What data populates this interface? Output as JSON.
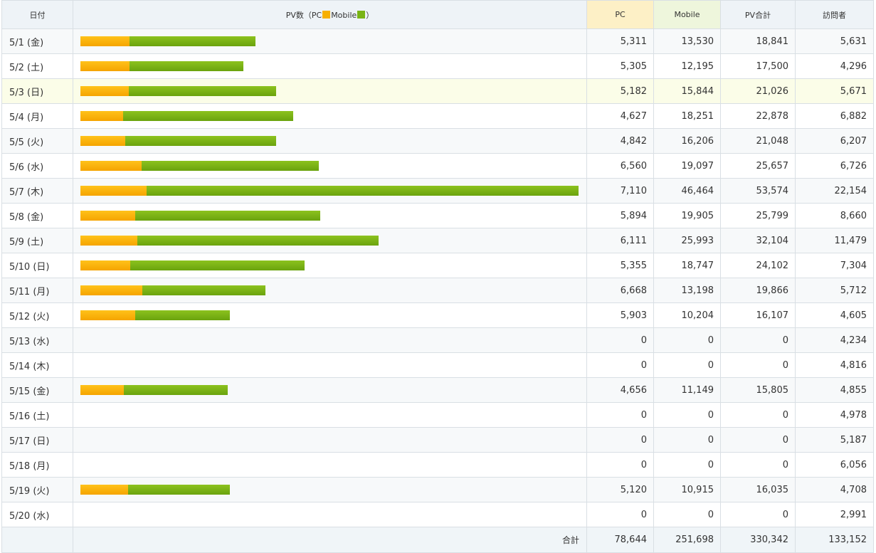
{
  "header": {
    "date": "日付",
    "pv_prefix": "PV数（PC",
    "pv_mobile": "Mobile",
    "pv_suffix": "）",
    "pc": "PC",
    "mobile": "Mobile",
    "total": "PV合計",
    "visitors": "訪問者"
  },
  "colors": {
    "pc": "#f7b000",
    "mobile": "#79b415",
    "highlight_row": "#fbfde8"
  },
  "rows": [
    {
      "date": "5/1 (金)",
      "pc": "5,311",
      "mobile": "13,530",
      "total": "18,841",
      "visitors": "5,631",
      "pc_v": 5311,
      "mob_v": 13530
    },
    {
      "date": "5/2 (土)",
      "pc": "5,305",
      "mobile": "12,195",
      "total": "17,500",
      "visitors": "4,296",
      "pc_v": 5305,
      "mob_v": 12195
    },
    {
      "date": "5/3 (日)",
      "pc": "5,182",
      "mobile": "15,844",
      "total": "21,026",
      "visitors": "5,671",
      "pc_v": 5182,
      "mob_v": 15844,
      "highlighted": true
    },
    {
      "date": "5/4 (月)",
      "pc": "4,627",
      "mobile": "18,251",
      "total": "22,878",
      "visitors": "6,882",
      "pc_v": 4627,
      "mob_v": 18251
    },
    {
      "date": "5/5 (火)",
      "pc": "4,842",
      "mobile": "16,206",
      "total": "21,048",
      "visitors": "6,207",
      "pc_v": 4842,
      "mob_v": 16206
    },
    {
      "date": "5/6 (水)",
      "pc": "6,560",
      "mobile": "19,097",
      "total": "25,657",
      "visitors": "6,726",
      "pc_v": 6560,
      "mob_v": 19097
    },
    {
      "date": "5/7 (木)",
      "pc": "7,110",
      "mobile": "46,464",
      "total": "53,574",
      "visitors": "22,154",
      "pc_v": 7110,
      "mob_v": 46464
    },
    {
      "date": "5/8 (金)",
      "pc": "5,894",
      "mobile": "19,905",
      "total": "25,799",
      "visitors": "8,660",
      "pc_v": 5894,
      "mob_v": 19905
    },
    {
      "date": "5/9 (土)",
      "pc": "6,111",
      "mobile": "25,993",
      "total": "32,104",
      "visitors": "11,479",
      "pc_v": 6111,
      "mob_v": 25993
    },
    {
      "date": "5/10 (日)",
      "pc": "5,355",
      "mobile": "18,747",
      "total": "24,102",
      "visitors": "7,304",
      "pc_v": 5355,
      "mob_v": 18747
    },
    {
      "date": "5/11 (月)",
      "pc": "6,668",
      "mobile": "13,198",
      "total": "19,866",
      "visitors": "5,712",
      "pc_v": 6668,
      "mob_v": 13198
    },
    {
      "date": "5/12 (火)",
      "pc": "5,903",
      "mobile": "10,204",
      "total": "16,107",
      "visitors": "4,605",
      "pc_v": 5903,
      "mob_v": 10204
    },
    {
      "date": "5/13 (水)",
      "pc": "0",
      "mobile": "0",
      "total": "0",
      "visitors": "4,234",
      "pc_v": 0,
      "mob_v": 0
    },
    {
      "date": "5/14 (木)",
      "pc": "0",
      "mobile": "0",
      "total": "0",
      "visitors": "4,816",
      "pc_v": 0,
      "mob_v": 0
    },
    {
      "date": "5/15 (金)",
      "pc": "4,656",
      "mobile": "11,149",
      "total": "15,805",
      "visitors": "4,855",
      "pc_v": 4656,
      "mob_v": 11149
    },
    {
      "date": "5/16 (土)",
      "pc": "0",
      "mobile": "0",
      "total": "0",
      "visitors": "4,978",
      "pc_v": 0,
      "mob_v": 0
    },
    {
      "date": "5/17 (日)",
      "pc": "0",
      "mobile": "0",
      "total": "0",
      "visitors": "5,187",
      "pc_v": 0,
      "mob_v": 0
    },
    {
      "date": "5/18 (月)",
      "pc": "0",
      "mobile": "0",
      "total": "0",
      "visitors": "6,056",
      "pc_v": 0,
      "mob_v": 0
    },
    {
      "date": "5/19 (火)",
      "pc": "5,120",
      "mobile": "10,915",
      "total": "16,035",
      "visitors": "4,708",
      "pc_v": 5120,
      "mob_v": 10915
    },
    {
      "date": "5/20 (水)",
      "pc": "0",
      "mobile": "0",
      "total": "0",
      "visitors": "2,991",
      "pc_v": 0,
      "mob_v": 0
    }
  ],
  "totals": {
    "label": "合計",
    "pc": "78,644",
    "mobile": "251,698",
    "total": "330,342",
    "visitors": "133,152"
  }
}
